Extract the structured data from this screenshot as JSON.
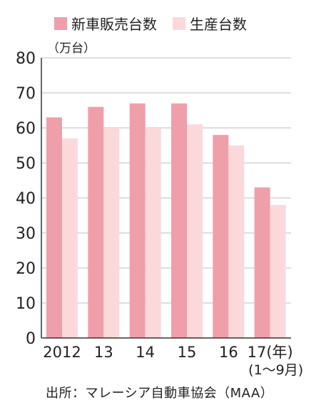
{
  "legend": {
    "sales_label": "新車販売台数",
    "production_label": "生産台数"
  },
  "unit_label": "（万台）",
  "source": "出所：マレーシア自動車協会（MAA）",
  "colors": {
    "sales": "#ef9fa9",
    "production": "#fbd9da",
    "grid": "#bdbdbd",
    "axis": "#333333"
  },
  "chart_data": {
    "type": "bar",
    "categories": [
      "2012",
      "13",
      "14",
      "15",
      "16",
      "17(年)"
    ],
    "x_sublabel": "(1～9月)",
    "series": [
      {
        "name": "新車販売台数",
        "values": [
          63,
          66,
          67,
          67,
          58,
          43
        ]
      },
      {
        "name": "生産台数",
        "values": [
          57,
          60,
          60,
          61,
          55,
          38
        ]
      }
    ],
    "ylim": [
      0,
      80
    ],
    "yticks": [
      0,
      10,
      20,
      30,
      40,
      50,
      60,
      70,
      80
    ],
    "grid": true,
    "legend_position": "top"
  }
}
